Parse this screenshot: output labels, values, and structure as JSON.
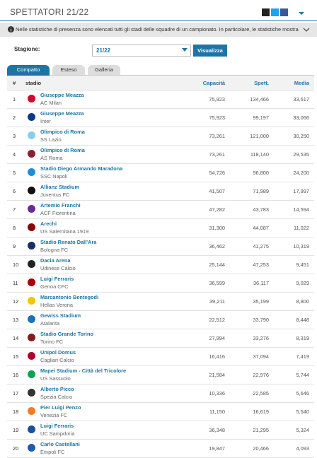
{
  "header": {
    "title": "SPETTATORI 21/22"
  },
  "info": "Nelle statistiche di presenza sono elencati tutti gli stadi delle squadre di un campionato. In particolare, le statistiche mostrano tutti i relativi v…",
  "filter": {
    "label": "Stagione:",
    "season": "21/22",
    "button": "Visualizza"
  },
  "tabs": [
    "Compatto",
    "Esteso",
    "Galleria"
  ],
  "table": {
    "columns": [
      "#",
      "stadio",
      "Capacità",
      "Spett.",
      "Media"
    ],
    "rows": [
      {
        "rank": "1",
        "stadium": "Giuseppe Meazza",
        "club": "AC Milan",
        "capacity": "75,923",
        "spectators": "134,466",
        "average": "33,617"
      },
      {
        "rank": "2",
        "stadium": "Giuseppe Meazza",
        "club": "Inter",
        "capacity": "75,923",
        "spectators": "99,197",
        "average": "33,066"
      },
      {
        "rank": "3",
        "stadium": "Olimpico di Roma",
        "club": "SS Lazio",
        "capacity": "73,261",
        "spectators": "121,000",
        "average": "30,250"
      },
      {
        "rank": "4",
        "stadium": "Olimpico di Roma",
        "club": "AS Roma",
        "capacity": "73,261",
        "spectators": "118,140",
        "average": "29,535"
      },
      {
        "rank": "5",
        "stadium": "Stadio Diego Armando Maradona",
        "club": "SSC Napoli",
        "capacity": "54,726",
        "spectators": "96,800",
        "average": "24,200"
      },
      {
        "rank": "6",
        "stadium": "Allianz Stadium",
        "club": "Juventus FC",
        "capacity": "41,507",
        "spectators": "71,989",
        "average": "17,997"
      },
      {
        "rank": "7",
        "stadium": "Artemio Franchi",
        "club": "ACF Fiorentina",
        "capacity": "47,282",
        "spectators": "43,783",
        "average": "14,594"
      },
      {
        "rank": "8",
        "stadium": "Arechi",
        "club": "US Salernitana 1919",
        "capacity": "31,300",
        "spectators": "44,087",
        "average": "11,022"
      },
      {
        "rank": "9",
        "stadium": "Stadio Renato Dall'Ara",
        "club": "Bologna FC",
        "capacity": "36,462",
        "spectators": "41,275",
        "average": "10,319"
      },
      {
        "rank": "10",
        "stadium": "Dacia Arena",
        "club": "Udinese Calcio",
        "capacity": "25,144",
        "spectators": "47,253",
        "average": "9,451"
      },
      {
        "rank": "11",
        "stadium": "Luigi Ferraris",
        "club": "Genoa CFC",
        "capacity": "36,599",
        "spectators": "36,117",
        "average": "9,029"
      },
      {
        "rank": "12",
        "stadium": "Marcantonio Bentegodi",
        "club": "Hellas Verona",
        "capacity": "39,211",
        "spectators": "35,199",
        "average": "8,800"
      },
      {
        "rank": "13",
        "stadium": "Gewiss Stadium",
        "club": "Atalanta",
        "capacity": "22,512",
        "spectators": "33,790",
        "average": "8,448"
      },
      {
        "rank": "14",
        "stadium": "Stadio Grande Torino",
        "club": "Torino FC",
        "capacity": "27,994",
        "spectators": "33,276",
        "average": "8,319"
      },
      {
        "rank": "15",
        "stadium": "Unipol Domus",
        "club": "Cagliari Calcio",
        "capacity": "16,416",
        "spectators": "37,094",
        "average": "7,419"
      },
      {
        "rank": "16",
        "stadium": "Mapei Stadium - Città del Tricolore",
        "club": "US Sassuolo",
        "capacity": "21,584",
        "spectators": "22,976",
        "average": "5,744"
      },
      {
        "rank": "17",
        "stadium": "Alberto Picco",
        "club": "Spezia Calcio",
        "capacity": "10,336",
        "spectators": "22,585",
        "average": "5,646"
      },
      {
        "rank": "18",
        "stadium": "Pier Luigi Penzo",
        "club": "Venezia FC",
        "capacity": "11,150",
        "spectators": "16,619",
        "average": "5,540"
      },
      {
        "rank": "19",
        "stadium": "Luigi Ferraris",
        "club": "UC Sampdoria",
        "capacity": "36,348",
        "spectators": "21,295",
        "average": "5,324"
      },
      {
        "rank": "20",
        "stadium": "Carlo Castellani",
        "club": "Empoli FC",
        "capacity": "19,847",
        "spectators": "20,466",
        "average": "4,093"
      }
    ]
  }
}
